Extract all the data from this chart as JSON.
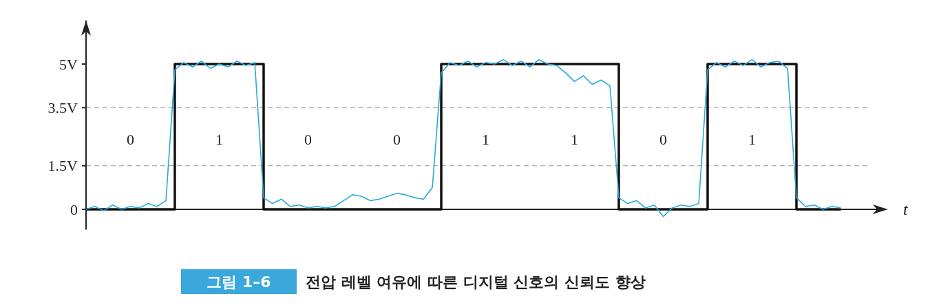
{
  "chart_data": {
    "type": "line",
    "title": "그림 1–6",
    "subtitle": "전압 레벨 여유에 따른 디지털 신호의 신뢰도 향상",
    "xlabel": "t",
    "ylim": [
      -0.7,
      6.5
    ],
    "yticks": [
      {
        "value": 0,
        "label": "0"
      },
      {
        "value": 1.5,
        "label": "1.5V"
      },
      {
        "value": 3.5,
        "label": "3.5V"
      },
      {
        "value": 5,
        "label": "5V"
      }
    ],
    "grid": false,
    "line_style": "solid",
    "categories": [
      null,
      null,
      null,
      null,
      null,
      null,
      null,
      null,
      null,
      null,
      null,
      null,
      null,
      null,
      null,
      null,
      null,
      null,
      null,
      null,
      null,
      null,
      null,
      null,
      null,
      null,
      null,
      null,
      null,
      null,
      null,
      null,
      null,
      null,
      null,
      null,
      null,
      null,
      null,
      null,
      null,
      null,
      null,
      null,
      null,
      null,
      null,
      null,
      null,
      null,
      null,
      null,
      null,
      null,
      null,
      null,
      null,
      null,
      null,
      null,
      null,
      null,
      null,
      null,
      null,
      null,
      null,
      null,
      null,
      null,
      null,
      null,
      null,
      null,
      null,
      null,
      null,
      null,
      null,
      null,
      null,
      null,
      null,
      null,
      null,
      null
    ],
    "ref_lines": [
      {
        "axis": "y",
        "value": 1.5,
        "color": "#aaaaaa",
        "line_style": "dashed"
      },
      {
        "axis": "y",
        "value": 3.5,
        "color": "#aaaaaa",
        "line_style": "dashed"
      }
    ],
    "annotations": [
      "0",
      "1",
      "0",
      "0",
      "1",
      "1",
      "0",
      "1"
    ],
    "series": [
      {
        "type": "step",
        "color": "#111111",
        "values": [
          0,
          0,
          0,
          0,
          0,
          0,
          0,
          0,
          0,
          0,
          5,
          5,
          5,
          5,
          5,
          5,
          5,
          5,
          5,
          5,
          0,
          0,
          0,
          0,
          0,
          0,
          0,
          0,
          0,
          0,
          0,
          0,
          0,
          0,
          0,
          0,
          0,
          0,
          0,
          0,
          5,
          5,
          5,
          5,
          5,
          5,
          5,
          5,
          5,
          5,
          5,
          5,
          5,
          5,
          5,
          5,
          5,
          5,
          5,
          5,
          0,
          0,
          0,
          0,
          0,
          0,
          0,
          0,
          0,
          0,
          5,
          5,
          5,
          5,
          5,
          5,
          5,
          5,
          5,
          5,
          0,
          0,
          0,
          0,
          0,
          0
        ]
      },
      {
        "color": "#29a9e0",
        "values": [
          0,
          0.1,
          -0.05,
          0.15,
          0,
          0.1,
          0.05,
          0.2,
          0.1,
          0.3,
          4.8,
          5.05,
          4.9,
          5.1,
          4.85,
          5,
          4.9,
          5.1,
          4.95,
          5.05,
          0.4,
          0.2,
          0.35,
          0.1,
          0.15,
          0.05,
          0.1,
          0.05,
          0.1,
          0.3,
          0.5,
          0.45,
          0.3,
          0.35,
          0.45,
          0.55,
          0.5,
          0.4,
          0.35,
          0.75,
          4.7,
          5.05,
          4.95,
          5.1,
          4.9,
          5.05,
          5,
          5.15,
          4.95,
          5.1,
          4.9,
          5.15,
          5,
          4.95,
          4.7,
          4.4,
          4.6,
          4.3,
          4.45,
          4.25,
          0.4,
          0.2,
          0.3,
          0.05,
          0.15,
          -0.25,
          0.05,
          0.15,
          0.1,
          0.2,
          4.8,
          5.05,
          4.9,
          5.1,
          4.95,
          5.15,
          4.9,
          5.05,
          5.1,
          4.85,
          0.4,
          0.1,
          0.15,
          0,
          0.1,
          0.05
        ]
      }
    ]
  }
}
